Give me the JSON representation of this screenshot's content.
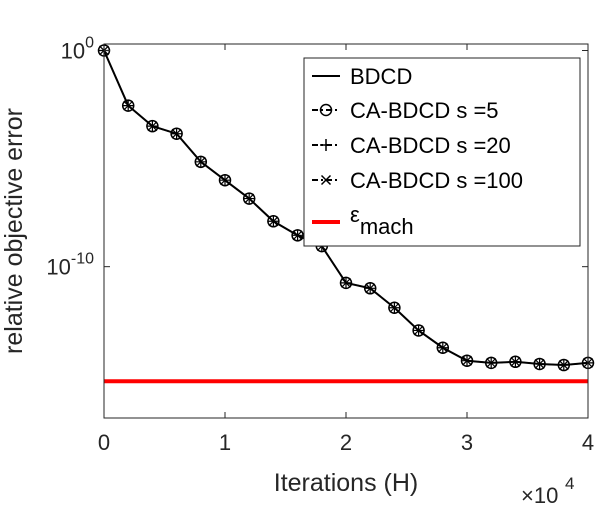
{
  "chart_data": {
    "type": "line",
    "xlabel": "Iterations (H)",
    "ylabel": "relative objective error",
    "x_exponent_base": "×10",
    "x_exponent_power": "4",
    "x_ticks": [
      0,
      1,
      2,
      3,
      4
    ],
    "x_tick_labels": [
      "0",
      "1",
      "2",
      "3",
      "4"
    ],
    "y_ticks": [
      {
        "exp": 0,
        "base": "10",
        "power": "0"
      },
      {
        "exp": -10,
        "base": "10",
        "power": "-10"
      }
    ],
    "xlim": [
      0,
      4
    ],
    "ylim_log10": [
      -17,
      0.3
    ],
    "yscale": "log",
    "grid": false,
    "legend_position": "top-right",
    "x": [
      0,
      0.2,
      0.4,
      0.6,
      0.8,
      1.0,
      1.2,
      1.4,
      1.6,
      1.8,
      2.0,
      2.2,
      2.4,
      2.6,
      2.8,
      3.0,
      3.2,
      3.4,
      3.6,
      3.8,
      4.0
    ],
    "log10_y": [
      0,
      -2.55,
      -3.5,
      -3.85,
      -5.15,
      -6.0,
      -6.85,
      -7.9,
      -8.55,
      -9.05,
      -10.75,
      -11.0,
      -11.9,
      -12.95,
      -13.75,
      -14.35,
      -14.45,
      -14.4,
      -14.5,
      -14.55,
      -14.45
    ],
    "series": [
      {
        "name": "BDCD",
        "marker": "none",
        "line_style": "solid",
        "color": "#000000"
      },
      {
        "name": "CA-BDCD s =5",
        "marker": "circle",
        "line_style": "dash-dot",
        "color": "#000000"
      },
      {
        "name": "CA-BDCD s =20",
        "marker": "plus",
        "line_style": "dash-dot",
        "color": "#000000"
      },
      {
        "name": "CA-BDCD s =100",
        "marker": "cross",
        "line_style": "dash-dot",
        "color": "#000000"
      }
    ],
    "machine_epsilon": {
      "label_symbol": "ε",
      "label_subscript": "mach",
      "log10_y": -15.3,
      "color": "#ff0000"
    }
  }
}
